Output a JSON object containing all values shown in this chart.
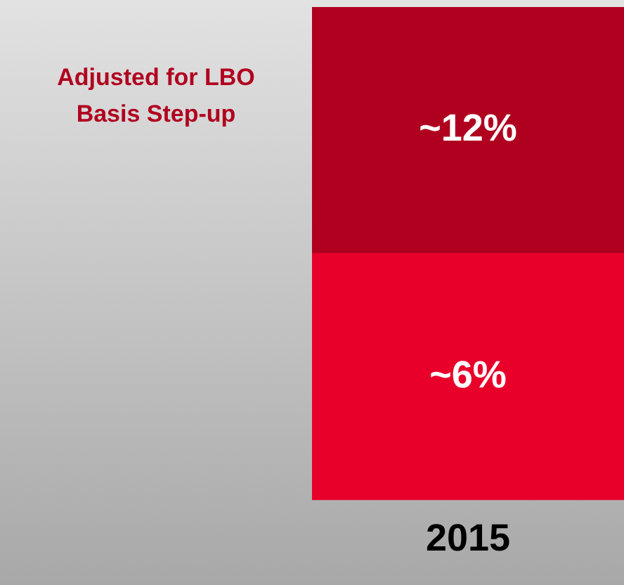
{
  "chart_data": {
    "type": "bar",
    "categories": [
      "2015"
    ],
    "stacked": true,
    "series": [
      {
        "color": "#e8002a",
        "values": [
          6
        ],
        "value_labels": [
          "~6%"
        ]
      },
      {
        "name": "Adjusted for LBO Basis Step-up",
        "color": "#b0001f",
        "values": [
          6
        ]
      }
    ],
    "totals": [
      "~12%"
    ],
    "legend": false,
    "grid": false,
    "tick_labels": "x"
  }
}
